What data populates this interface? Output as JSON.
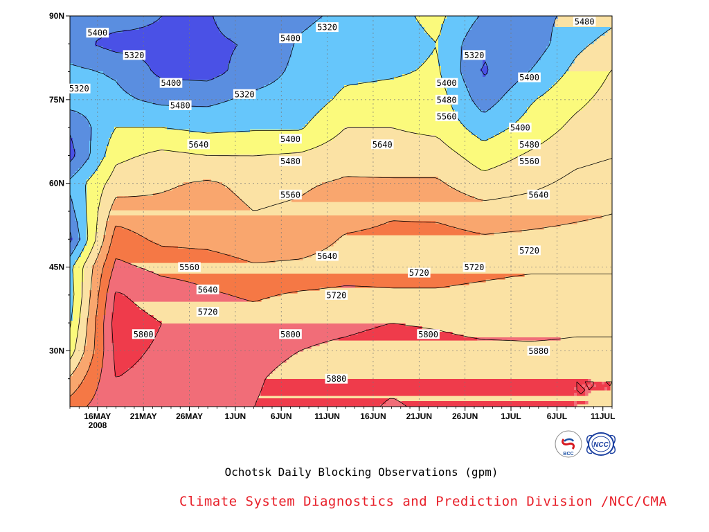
{
  "chart_data": {
    "type": "heatmap",
    "subtype": "filled-contour",
    "title": "Ochotsk Daily Blocking Observations (gpm)",
    "x_tick_labels": [
      "16MAY",
      "21MAY",
      "26MAY",
      "1JUN",
      "6JUN",
      "11JUN",
      "16JUN",
      "21JUN",
      "26JUN",
      "1JUL",
      "6JUL",
      "11JUL"
    ],
    "x_year_label": "2008",
    "x_range": [
      "2008-05-13",
      "2008-07-11"
    ],
    "y_tick_labels": [
      "30N",
      "45N",
      "60N",
      "75N",
      "90N"
    ],
    "y_range": [
      20,
      90
    ],
    "contour_levels": [
      5320,
      5400,
      5480,
      5560,
      5640,
      5720,
      5800,
      5880
    ],
    "fill_colors": [
      "#2a2abd",
      "#4a51e6",
      "#5a8ee0",
      "#66c6fb",
      "#fbfa7c",
      "#fbe2a4",
      "#f9a66e",
      "#f57845",
      "#f16d78",
      "#ef3b4b"
    ],
    "contour_labels": [
      {
        "date": "2008-05-16",
        "lat": 87,
        "level": "5400"
      },
      {
        "date": "2008-05-20",
        "lat": 83,
        "level": "5320"
      },
      {
        "date": "2008-05-14",
        "lat": 77,
        "level": "5320"
      },
      {
        "date": "2008-05-24",
        "lat": 78,
        "level": "5400"
      },
      {
        "date": "2008-05-25",
        "lat": 74,
        "level": "5480"
      },
      {
        "date": "2008-06-01",
        "lat": 76,
        "level": "5320"
      },
      {
        "date": "2008-06-06",
        "lat": 86,
        "level": "5400"
      },
      {
        "date": "2008-06-10",
        "lat": 88,
        "level": "5320"
      },
      {
        "date": "2008-06-06",
        "lat": 68,
        "level": "5400"
      },
      {
        "date": "2008-06-06",
        "lat": 64,
        "level": "5480"
      },
      {
        "date": "2008-06-06",
        "lat": 58,
        "level": "5560"
      },
      {
        "date": "2008-05-27",
        "lat": 67,
        "level": "5640"
      },
      {
        "date": "2008-06-23",
        "lat": 78,
        "level": "5400"
      },
      {
        "date": "2008-06-23",
        "lat": 75,
        "level": "5480"
      },
      {
        "date": "2008-06-23",
        "lat": 72,
        "level": "5560"
      },
      {
        "date": "2008-06-26",
        "lat": 83,
        "level": "5320"
      },
      {
        "date": "2008-06-16",
        "lat": 67,
        "level": "5640"
      },
      {
        "date": "2008-07-08",
        "lat": 89,
        "level": "5480"
      },
      {
        "date": "2008-07-02",
        "lat": 79,
        "level": "5400"
      },
      {
        "date": "2008-07-01",
        "lat": 70,
        "level": "5400"
      },
      {
        "date": "2008-07-02",
        "lat": 67,
        "level": "5480"
      },
      {
        "date": "2008-07-02",
        "lat": 64,
        "level": "5560"
      },
      {
        "date": "2008-07-03",
        "lat": 58,
        "level": "5640"
      },
      {
        "date": "2008-05-26",
        "lat": 45,
        "level": "5560"
      },
      {
        "date": "2008-05-28",
        "lat": 41,
        "level": "5640"
      },
      {
        "date": "2008-05-28",
        "lat": 37,
        "level": "5720"
      },
      {
        "date": "2008-05-21",
        "lat": 33,
        "level": "5800"
      },
      {
        "date": "2008-06-06",
        "lat": 33,
        "level": "5800"
      },
      {
        "date": "2008-06-10",
        "lat": 47,
        "level": "5640"
      },
      {
        "date": "2008-06-11",
        "lat": 40,
        "level": "5720"
      },
      {
        "date": "2008-06-20",
        "lat": 44,
        "level": "5720"
      },
      {
        "date": "2008-06-26",
        "lat": 45,
        "level": "5720"
      },
      {
        "date": "2008-07-02",
        "lat": 48,
        "level": "5720"
      },
      {
        "date": "2008-06-21",
        "lat": 33,
        "level": "5800"
      },
      {
        "date": "2008-06-11",
        "lat": 25,
        "level": "5880"
      },
      {
        "date": "2008-07-03",
        "lat": 30,
        "level": "5880"
      }
    ]
  },
  "figure": {
    "title": "Ochotsk Daily Blocking Observations (gpm)",
    "credit": "Climate System Diagnostics and Prediction Division /NCC/CMA",
    "logos": [
      {
        "name": "BCC",
        "text": "BCC",
        "colors": [
          "#d71920",
          "#1a4fa3"
        ]
      },
      {
        "name": "NCC",
        "text": "NCC",
        "colors": [
          "#1a3fa0"
        ]
      }
    ]
  }
}
